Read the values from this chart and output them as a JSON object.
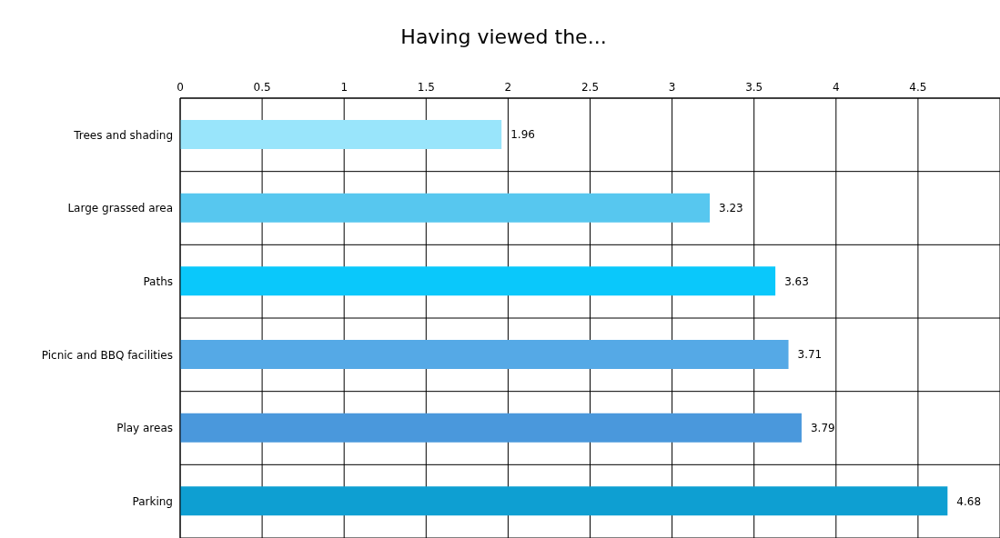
{
  "chart_data": {
    "type": "bar",
    "orientation": "horizontal",
    "title": "Having viewed the...",
    "categories": [
      "Trees and shading",
      "Large grassed area",
      "Paths",
      "Picnic and BBQ facilities",
      "Play areas",
      "Parking"
    ],
    "values": [
      1.96,
      3.23,
      3.63,
      3.71,
      3.79,
      4.68
    ],
    "colors": [
      "#99e5fb",
      "#57c7ef",
      "#0ac8fb",
      "#55a9e6",
      "#4a98dc",
      "#0e9fd2"
    ],
    "xlim": [
      0,
      5
    ],
    "xticks": [
      0,
      0.5,
      1,
      1.5,
      2,
      2.5,
      3,
      3.5,
      4,
      4.5
    ],
    "grid": true,
    "data_labels": true
  }
}
